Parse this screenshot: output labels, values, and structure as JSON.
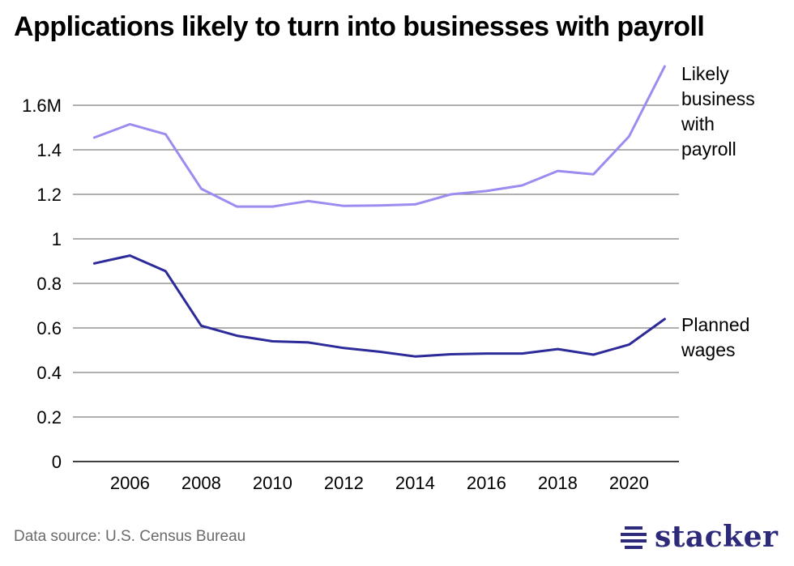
{
  "title": "Applications likely to turn into businesses with payroll",
  "source": "Data source: U.S. Census Bureau",
  "brand": {
    "name": "stacker",
    "color": "#2d2a7a"
  },
  "colors": {
    "series_likely": "#9b8cf0",
    "series_planned": "#2d2a99",
    "gridline": "#808080",
    "axis": "#000000"
  },
  "chart_data": {
    "type": "line",
    "title": "Applications likely to turn into businesses with payroll",
    "xlabel": "",
    "ylabel": "",
    "x": [
      2005,
      2006,
      2007,
      2008,
      2009,
      2010,
      2011,
      2012,
      2013,
      2014,
      2015,
      2016,
      2017,
      2018,
      2019,
      2020,
      2021
    ],
    "xlim": [
      2004.4,
      2021.4
    ],
    "ylim": [
      0,
      1.6
    ],
    "x_ticks": [
      2006,
      2008,
      2010,
      2012,
      2014,
      2016,
      2018,
      2020
    ],
    "x_tick_labels": [
      "2006",
      "2008",
      "2010",
      "2012",
      "2014",
      "2016",
      "2018",
      "2020"
    ],
    "y_ticks": [
      0,
      0.2,
      0.4,
      0.6,
      0.8,
      1,
      1.2,
      1.4,
      1.6
    ],
    "y_tick_labels": [
      "0",
      "0.2",
      "0.4",
      "0.6",
      "0.8",
      "1",
      "1.2",
      "1.4",
      "1.6M"
    ],
    "grid": true,
    "legend": "direct labels at right end of lines",
    "series": [
      {
        "name": "Likely business with payroll",
        "label_lines": [
          "Likely",
          "business",
          "with",
          "payroll"
        ],
        "color": "#9b8cf0",
        "values": [
          1.455,
          1.515,
          1.47,
          1.225,
          1.145,
          1.145,
          1.17,
          1.148,
          1.15,
          1.155,
          1.2,
          1.215,
          1.24,
          1.305,
          1.29,
          1.46,
          1.775
        ]
      },
      {
        "name": "Planned wages",
        "label_lines": [
          "Planned",
          "wages"
        ],
        "color": "#2d2a99",
        "values": [
          0.89,
          0.925,
          0.855,
          0.61,
          0.565,
          0.54,
          0.535,
          0.51,
          0.493,
          0.472,
          0.482,
          0.485,
          0.485,
          0.505,
          0.48,
          0.525,
          0.64
        ]
      }
    ]
  }
}
